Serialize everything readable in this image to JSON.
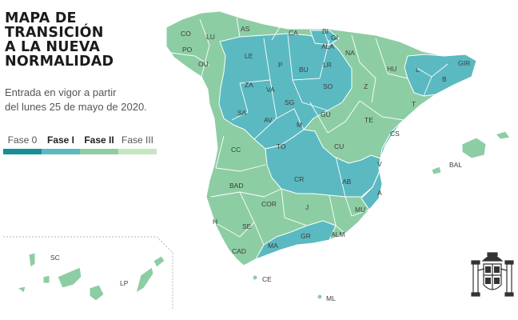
{
  "title": {
    "line1": "MAPA DE",
    "line2": "TRANSICIÓN",
    "line3": "A LA NUEVA",
    "line4": "NORMALIDAD"
  },
  "subtitle": {
    "line1": "Entrada en vigor a partir",
    "line2": "del lunes 25 de mayo de 2020."
  },
  "legend": [
    {
      "label": "Fase 0",
      "color": "#188f96",
      "bold": false
    },
    {
      "label": "Fase I",
      "color": "#5bb9c1",
      "bold": true
    },
    {
      "label": "Fase II",
      "color": "#8dcda4",
      "bold": true
    },
    {
      "label": "Fase III",
      "color": "#c5e8c0",
      "bold": false
    }
  ],
  "colors": {
    "phase_I": "#5bb9c1",
    "phase_II": "#8dcda4",
    "border": "#ffffff"
  },
  "provinces": [
    {
      "code": "CO",
      "phase": "II"
    },
    {
      "code": "AS",
      "phase": "II"
    },
    {
      "code": "CA",
      "phase": "II"
    },
    {
      "code": "BI",
      "phase": "I"
    },
    {
      "code": "GI",
      "phase": "I"
    },
    {
      "code": "LU",
      "phase": "II"
    },
    {
      "code": "PO",
      "phase": "II"
    },
    {
      "code": "OU",
      "phase": "II"
    },
    {
      "code": "LE",
      "phase": "I"
    },
    {
      "code": "P",
      "phase": "I"
    },
    {
      "code": "BU",
      "phase": "I"
    },
    {
      "code": "ALA",
      "phase": "II"
    },
    {
      "code": "NA",
      "phase": "II"
    },
    {
      "code": "LR",
      "phase": "II"
    },
    {
      "code": "HU",
      "phase": "II"
    },
    {
      "code": "GIR",
      "phase": "I"
    },
    {
      "code": "L",
      "phase": "I"
    },
    {
      "code": "B",
      "phase": "I"
    },
    {
      "code": "ZA",
      "phase": "I"
    },
    {
      "code": "VA",
      "phase": "I"
    },
    {
      "code": "SO",
      "phase": "I"
    },
    {
      "code": "Z",
      "phase": "II"
    },
    {
      "code": "T",
      "phase": "II"
    },
    {
      "code": "SA",
      "phase": "I"
    },
    {
      "code": "SG",
      "phase": "I"
    },
    {
      "code": "AV",
      "phase": "I"
    },
    {
      "code": "M",
      "phase": "I"
    },
    {
      "code": "GU",
      "phase": "II"
    },
    {
      "code": "TE",
      "phase": "II"
    },
    {
      "code": "CS",
      "phase": "I"
    },
    {
      "code": "CC",
      "phase": "II"
    },
    {
      "code": "TO",
      "phase": "I"
    },
    {
      "code": "CU",
      "phase": "II"
    },
    {
      "code": "V",
      "phase": "I"
    },
    {
      "code": "BAD",
      "phase": "II"
    },
    {
      "code": "CR",
      "phase": "I"
    },
    {
      "code": "AB",
      "phase": "I"
    },
    {
      "code": "A",
      "phase": "I"
    },
    {
      "code": "COR",
      "phase": "II"
    },
    {
      "code": "J",
      "phase": "II"
    },
    {
      "code": "MU",
      "phase": "II"
    },
    {
      "code": "H",
      "phase": "II"
    },
    {
      "code": "SE",
      "phase": "II"
    },
    {
      "code": "GR",
      "phase": "I"
    },
    {
      "code": "ALM",
      "phase": "II"
    },
    {
      "code": "CAD",
      "phase": "II"
    },
    {
      "code": "MA",
      "phase": "I"
    },
    {
      "code": "BAL",
      "phase": "II"
    },
    {
      "code": "SC",
      "phase": "II"
    },
    {
      "code": "LP",
      "phase": "II"
    },
    {
      "code": "CE",
      "phase": "II"
    },
    {
      "code": "ML",
      "phase": "II"
    }
  ]
}
